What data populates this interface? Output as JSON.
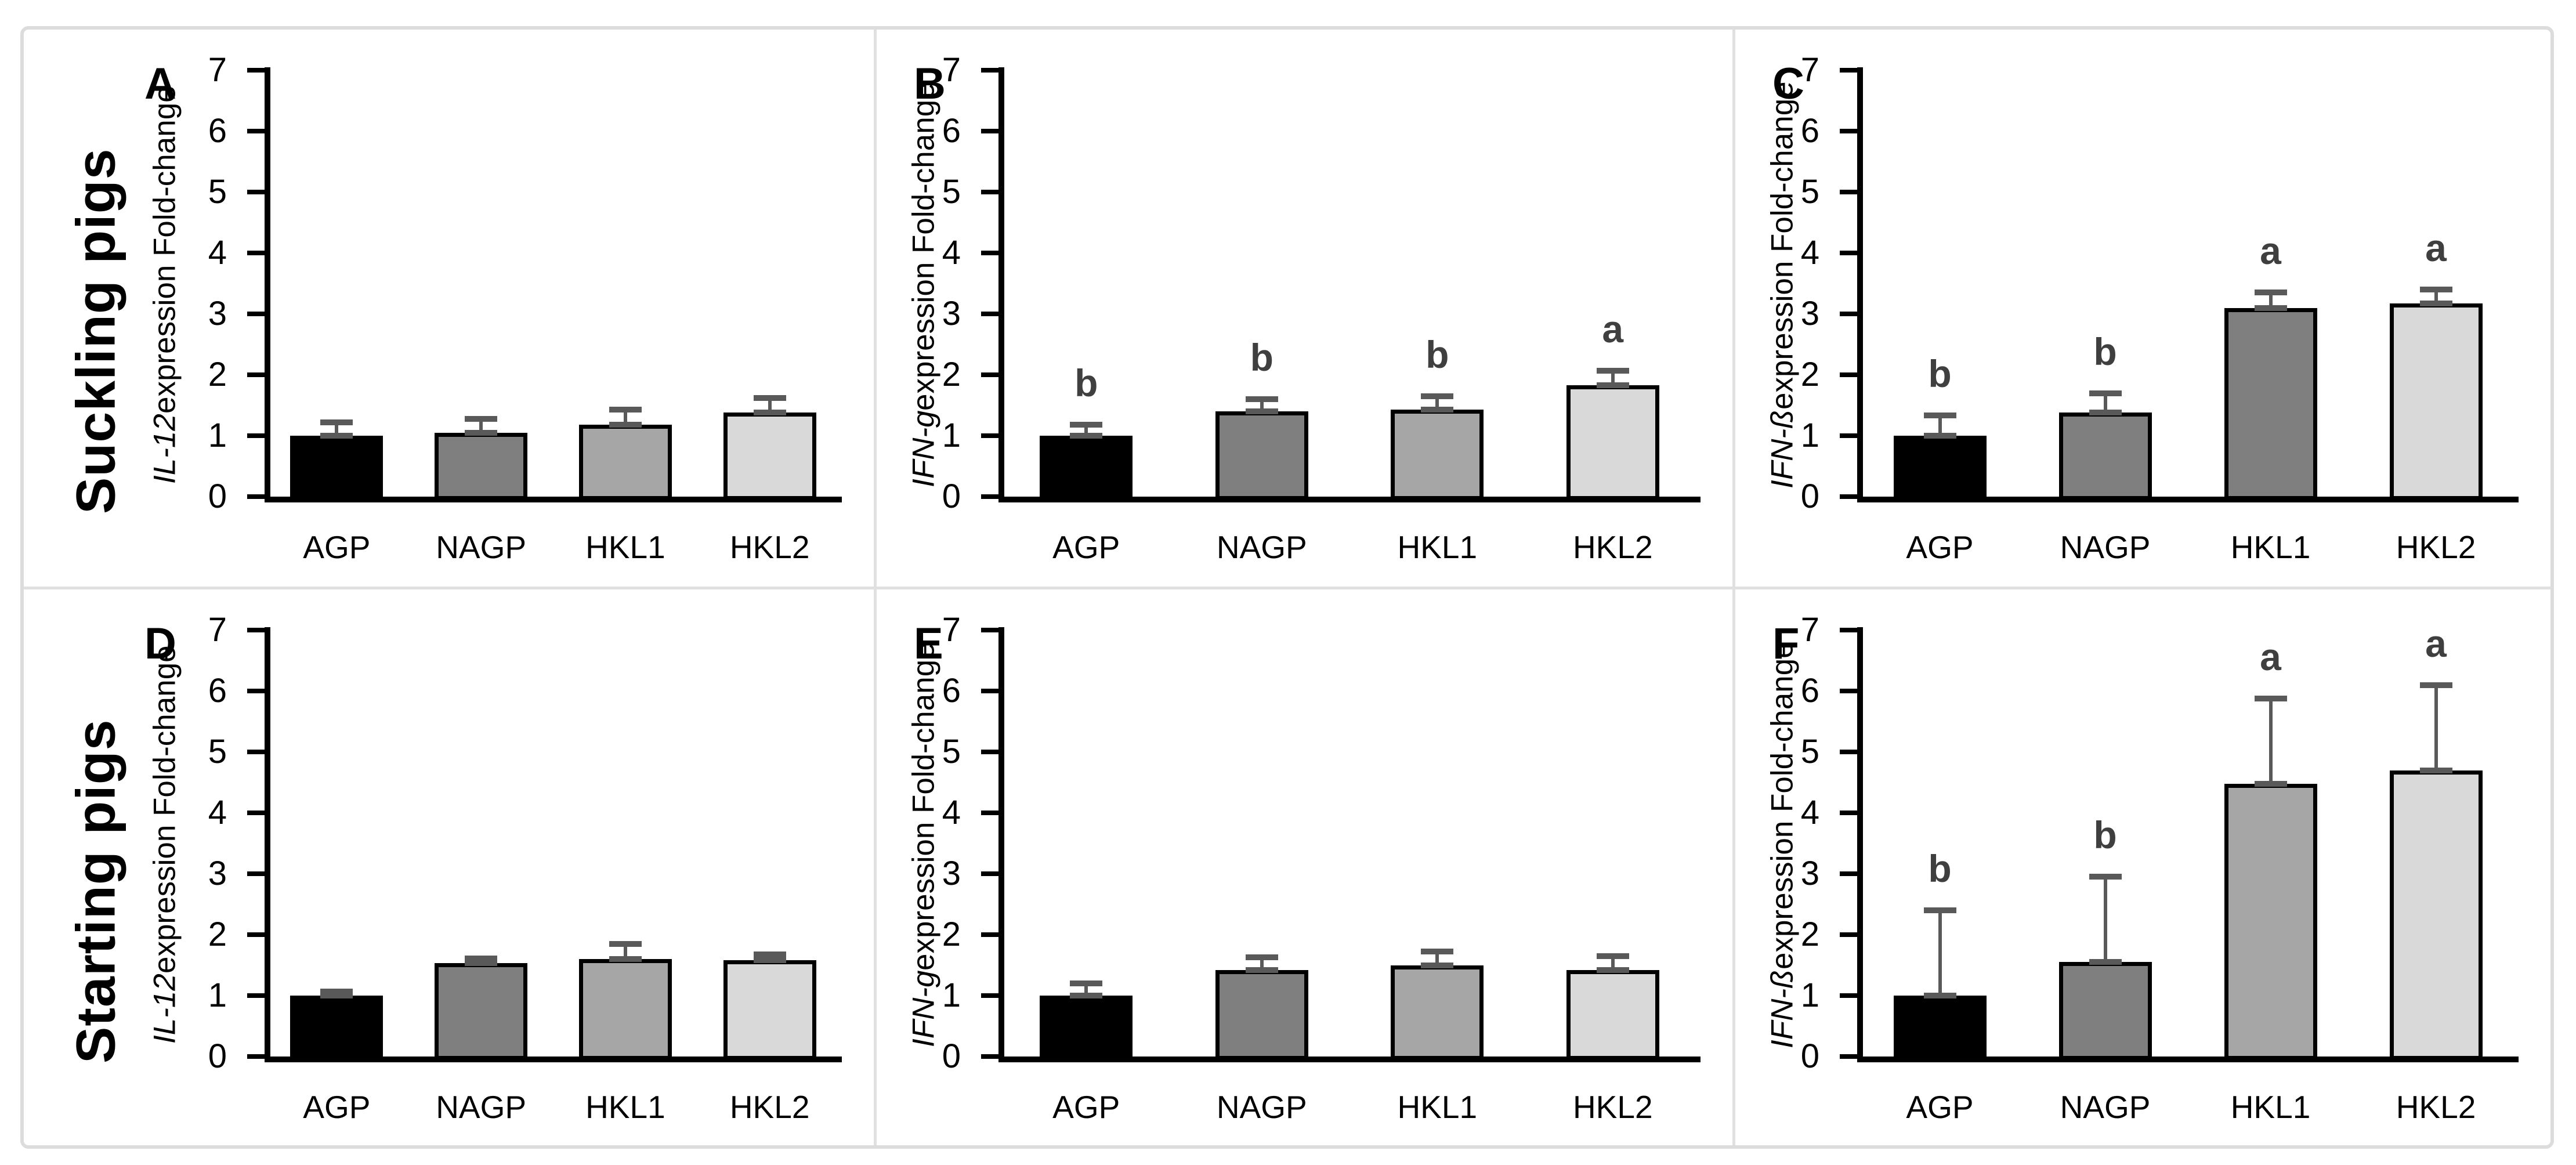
{
  "figure": {
    "row_labels": [
      "Suckling pigs",
      "Starting pigs"
    ],
    "frame_color": "#dcdcdc",
    "divider_color": "#e0e0e0",
    "error_bar_color": "#595959",
    "sig_letter_color": "#3f3f3f",
    "x_categories": [
      "AGP",
      "NAGP",
      "HKL1",
      "HKL2"
    ]
  },
  "chart_data": [
    {
      "type": "bar",
      "panel_letter": "A",
      "group": "Suckling pigs",
      "ylabel_gene": "IL-12",
      "ylabel_rest": " expression Fold-change",
      "categories": [
        "AGP",
        "NAGP",
        "HKL1",
        "HKL2"
      ],
      "values": [
        1.0,
        1.05,
        1.18,
        1.38
      ],
      "errors_up": [
        0.22,
        0.23,
        0.25,
        0.24
      ],
      "sig_letters": [
        "",
        "",
        "",
        ""
      ],
      "bar_colors": [
        "#000000",
        "#7f7f7f",
        "#a6a6a6",
        "#d9d9d9"
      ],
      "ylim": [
        0,
        7
      ],
      "yticks": [
        0,
        1,
        2,
        3,
        4,
        5,
        6,
        7
      ],
      "grid": false,
      "legend": false
    },
    {
      "type": "bar",
      "panel_letter": "B",
      "group": "Suckling pigs",
      "ylabel_gene": "IFN-g",
      "ylabel_rest": " expression Fold-change",
      "categories": [
        "AGP",
        "NAGP",
        "HKL1",
        "HKL2"
      ],
      "values": [
        1.0,
        1.4,
        1.43,
        1.83
      ],
      "errors_up": [
        0.18,
        0.2,
        0.22,
        0.24
      ],
      "sig_letters": [
        "b",
        "b",
        "b",
        "a"
      ],
      "bar_colors": [
        "#000000",
        "#7f7f7f",
        "#a6a6a6",
        "#d9d9d9"
      ],
      "ylim": [
        0,
        7
      ],
      "yticks": [
        0,
        1,
        2,
        3,
        4,
        5,
        6,
        7
      ],
      "grid": false,
      "legend": false
    },
    {
      "type": "bar",
      "panel_letter": "C",
      "group": "Suckling pigs",
      "ylabel_gene": "IFN-ß",
      "ylabel_rest": " expression Fold-change",
      "categories": [
        "AGP",
        "NAGP",
        "HKL1",
        "HKL2"
      ],
      "values": [
        1.0,
        1.38,
        3.1,
        3.17
      ],
      "errors_up": [
        0.33,
        0.32,
        0.25,
        0.23
      ],
      "sig_letters": [
        "b",
        "b",
        "a",
        "a"
      ],
      "bar_colors": [
        "#000000",
        "#7f7f7f",
        "#7f7f7f",
        "#d9d9d9"
      ],
      "ylim": [
        0,
        7
      ],
      "yticks": [
        0,
        1,
        2,
        3,
        4,
        5,
        6,
        7
      ],
      "grid": false,
      "legend": false
    },
    {
      "type": "bar",
      "panel_letter": "D",
      "group": "Starting pigs",
      "ylabel_gene": "IL-12",
      "ylabel_rest": " expression Fold-change",
      "categories": [
        "AGP",
        "NAGP",
        "HKL1",
        "HKL2"
      ],
      "values": [
        1.0,
        1.53,
        1.6,
        1.58
      ],
      "errors_up": [
        0.07,
        0.08,
        0.25,
        0.1
      ],
      "sig_letters": [
        "",
        "",
        "",
        ""
      ],
      "bar_colors": [
        "#000000",
        "#7f7f7f",
        "#a6a6a6",
        "#d9d9d9"
      ],
      "ylim": [
        0,
        7
      ],
      "yticks": [
        0,
        1,
        2,
        3,
        4,
        5,
        6,
        7
      ],
      "grid": false,
      "legend": false
    },
    {
      "type": "bar",
      "panel_letter": "E",
      "group": "Starting pigs",
      "ylabel_gene": "IFN-g",
      "ylabel_rest": " expression Fold-change",
      "categories": [
        "AGP",
        "NAGP",
        "HKL1",
        "HKL2"
      ],
      "values": [
        1.0,
        1.42,
        1.5,
        1.42
      ],
      "errors_up": [
        0.2,
        0.21,
        0.22,
        0.23
      ],
      "sig_letters": [
        "",
        "",
        "",
        ""
      ],
      "bar_colors": [
        "#000000",
        "#7f7f7f",
        "#a6a6a6",
        "#d9d9d9"
      ],
      "ylim": [
        0,
        7
      ],
      "yticks": [
        0,
        1,
        2,
        3,
        4,
        5,
        6,
        7
      ],
      "grid": false,
      "legend": false
    },
    {
      "type": "bar",
      "panel_letter": "F",
      "group": "Starting pigs",
      "ylabel_gene": "IFN-ß",
      "ylabel_rest": " expression Fold-change",
      "categories": [
        "AGP",
        "NAGP",
        "HKL1",
        "HKL2"
      ],
      "values": [
        1.0,
        1.55,
        4.48,
        4.7
      ],
      "errors_up": [
        1.4,
        1.4,
        1.4,
        1.4
      ],
      "sig_letters": [
        "b",
        "b",
        "a",
        "a"
      ],
      "bar_colors": [
        "#000000",
        "#7f7f7f",
        "#a6a6a6",
        "#d9d9d9"
      ],
      "ylim": [
        0,
        7
      ],
      "yticks": [
        0,
        1,
        2,
        3,
        4,
        5,
        6,
        7
      ],
      "grid": false,
      "legend": false
    }
  ]
}
